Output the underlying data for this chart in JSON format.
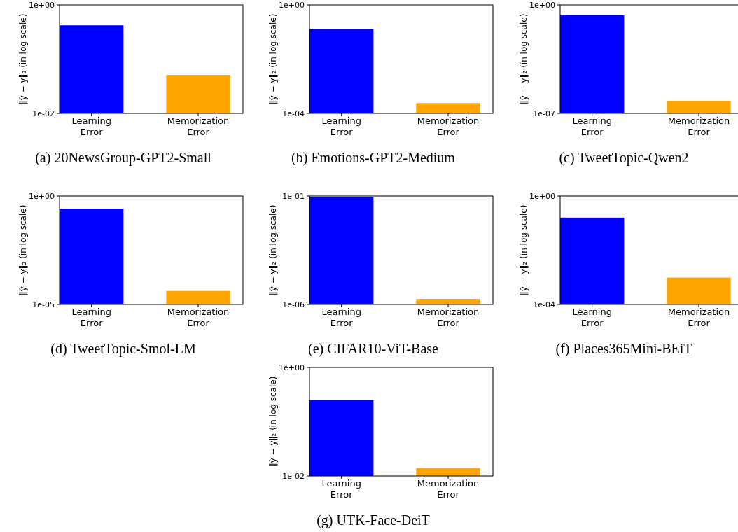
{
  "chart_data": [
    {
      "type": "bar",
      "title": "(a) 20NewsGroup-GPT2-Small",
      "ylabel": "‖ŷ − y‖₂ (in log scale)",
      "categories": [
        "Learning\nError",
        "Memorization\nError"
      ],
      "values": [
        0.42,
        0.051
      ],
      "colors": [
        "#0000ff",
        "#ffa500"
      ],
      "log": "y",
      "ylim": [
        0.01,
        1
      ],
      "yticks": [
        {
          "value": 0.01,
          "label": "1e-02"
        },
        {
          "value": 1,
          "label": "1e+00"
        }
      ]
    },
    {
      "type": "bar",
      "title": "(b) Emotions-GPT2-Medium",
      "ylabel": "‖ŷ − y‖₂ (in log scale)",
      "categories": [
        "Learning\nError",
        "Memorization\nError"
      ],
      "values": [
        0.13,
        0.00024
      ],
      "colors": [
        "#0000ff",
        "#ffa500"
      ],
      "log": "y",
      "ylim": [
        0.0001,
        1
      ],
      "yticks": [
        {
          "value": 0.0001,
          "label": "1e-04"
        },
        {
          "value": 1,
          "label": "1e+00"
        }
      ]
    },
    {
      "type": "bar",
      "title": "(c) TweetTopic-Qwen2",
      "ylabel": "‖ŷ − y‖₂ (in log scale)",
      "categories": [
        "Learning\nError",
        "Memorization\nError"
      ],
      "values": [
        0.21,
        6.5e-07
      ],
      "colors": [
        "#0000ff",
        "#ffa500"
      ],
      "log": "y",
      "ylim": [
        1e-07,
        1
      ],
      "yticks": [
        {
          "value": 1e-07,
          "label": "1e-07"
        },
        {
          "value": 1,
          "label": "1e+00"
        }
      ]
    },
    {
      "type": "bar",
      "title": "(d) TweetTopic-Smol-LM",
      "ylabel": "‖ŷ − y‖₂ (in log scale)",
      "categories": [
        "Learning\nError",
        "Memorization\nError"
      ],
      "values": [
        0.26,
        4.2e-05
      ],
      "colors": [
        "#0000ff",
        "#ffa500"
      ],
      "log": "y",
      "ylim": [
        1e-05,
        1
      ],
      "yticks": [
        {
          "value": 1e-05,
          "label": "1e-05"
        },
        {
          "value": 1,
          "label": "1e+00"
        }
      ]
    },
    {
      "type": "bar",
      "title": "(e) CIFAR10-ViT-Base",
      "ylabel": "‖ŷ − y‖₂ (in log scale)",
      "categories": [
        "Learning\nError",
        "Memorization\nError"
      ],
      "values": [
        0.093,
        1.8e-06
      ],
      "colors": [
        "#0000ff",
        "#ffa500"
      ],
      "log": "y",
      "ylim": [
        1e-06,
        0.1
      ],
      "yticks": [
        {
          "value": 1e-06,
          "label": "1e-06"
        },
        {
          "value": 0.1,
          "label": "1e-01"
        }
      ]
    },
    {
      "type": "bar",
      "title": "(f) Places365Mini-BEiT",
      "ylabel": "‖ŷ − y‖₂ (in log scale)",
      "categories": [
        "Learning\nError",
        "Memorization\nError"
      ],
      "values": [
        0.16,
        0.00098
      ],
      "colors": [
        "#0000ff",
        "#ffa500"
      ],
      "log": "y",
      "ylim": [
        0.0001,
        1
      ],
      "yticks": [
        {
          "value": 0.0001,
          "label": "1e-04"
        },
        {
          "value": 1,
          "label": "1e+00"
        }
      ]
    },
    {
      "type": "bar",
      "title": "(g) UTK-Face-DeiT",
      "ylabel": "‖ŷ − y‖₂ (in log scale)",
      "categories": [
        "Learning\nError",
        "Memorization\nError"
      ],
      "values": [
        0.25,
        0.014
      ],
      "colors": [
        "#0000ff",
        "#ffa500"
      ],
      "log": "y",
      "ylim": [
        0.01,
        1
      ],
      "yticks": [
        {
          "value": 0.01,
          "label": "1e-02"
        },
        {
          "value": 1,
          "label": "1e+00"
        }
      ]
    }
  ]
}
